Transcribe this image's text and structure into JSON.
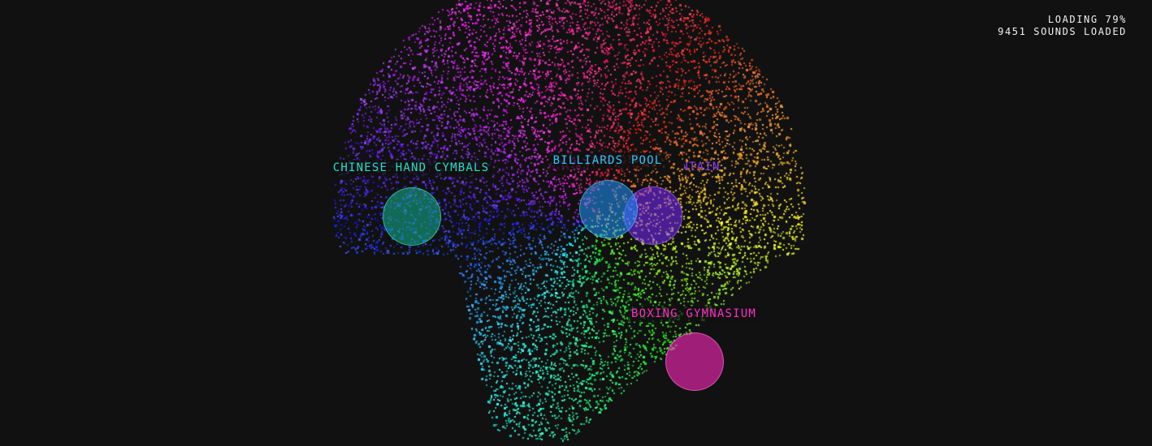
{
  "status": {
    "loading": "LOADING 79%",
    "sounds_loaded": "9451 SOUNDS LOADED"
  },
  "sounds": [
    {
      "label": "CHINESE HAND CYMBALS",
      "color": "#20d6b4"
    },
    {
      "label": "BILLIARDS POOL",
      "color": "#29b8ff"
    },
    {
      "label": "FOUNTAIN",
      "color": "#8b3dff"
    },
    {
      "label": "BOXING GYMNASIUM",
      "color": "#ff2ec7"
    }
  ]
}
